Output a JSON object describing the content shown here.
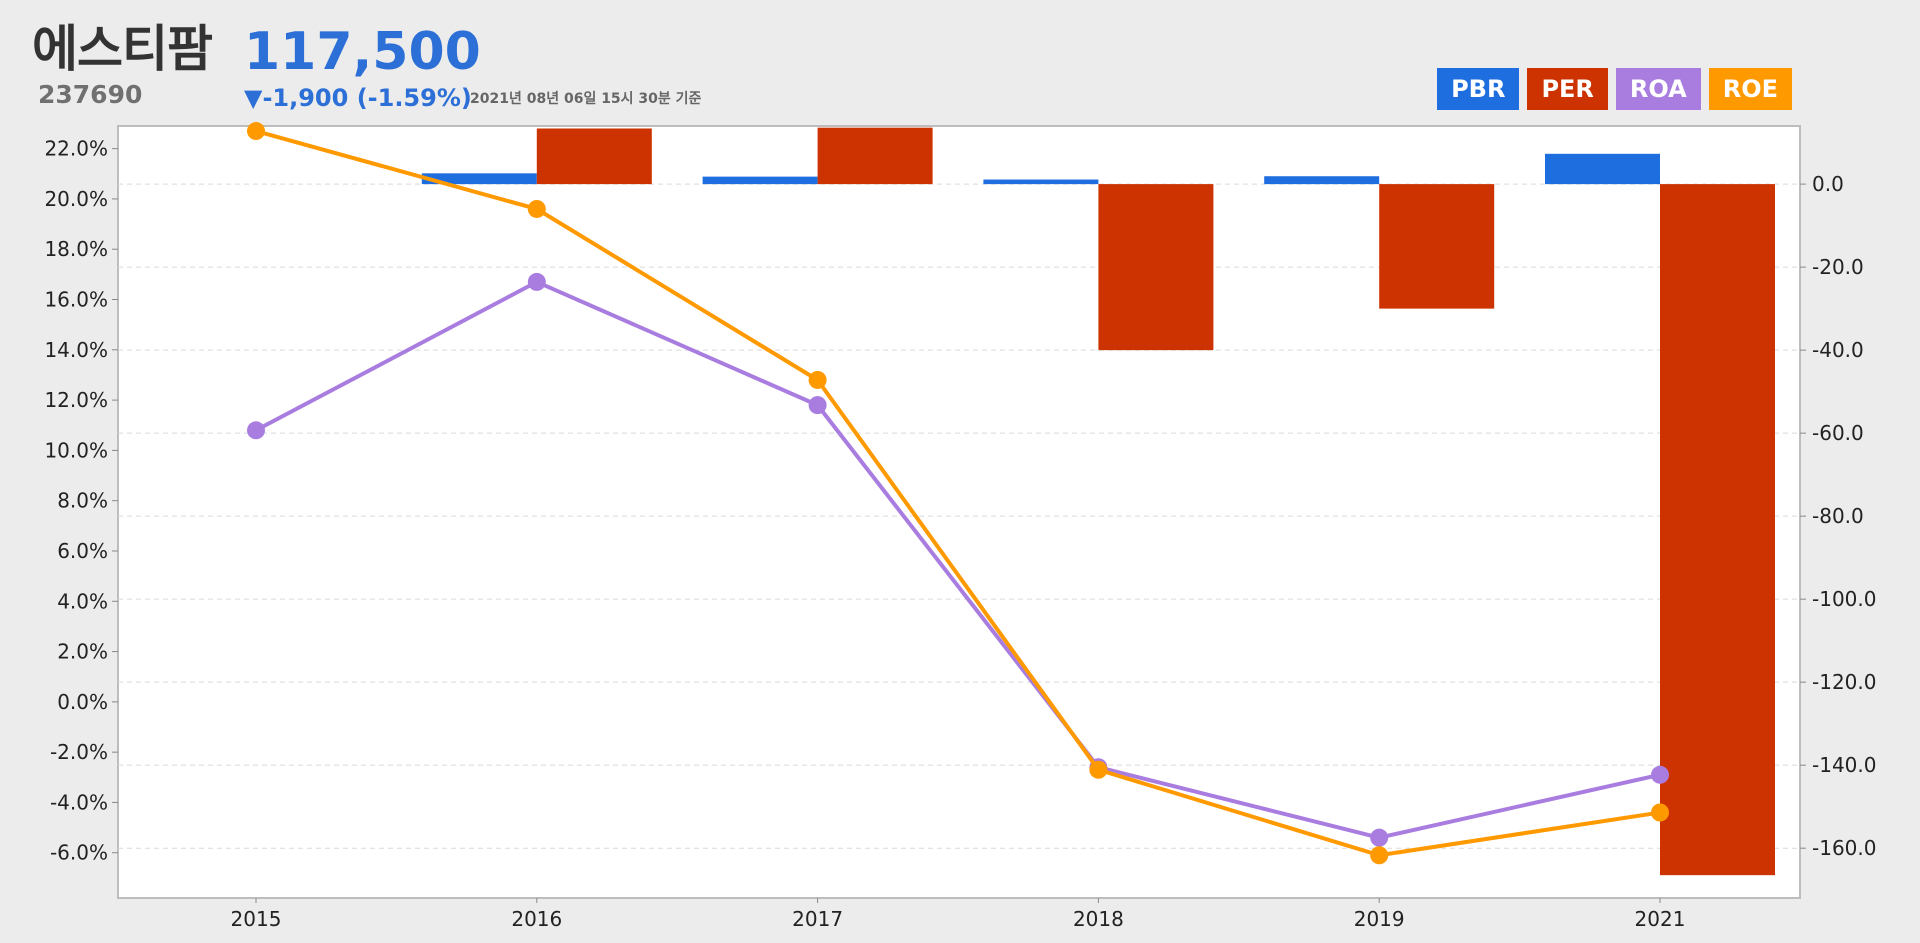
{
  "header": {
    "company_name": "에스티팜",
    "stock_code": "237690",
    "price": "117,500",
    "change": "▼-1,900 (-1.59%)",
    "timestamp": "2021년 08년 06일 15시 30분 기준"
  },
  "legend": [
    {
      "label": "PBR",
      "color": "#1f6ee0"
    },
    {
      "label": "PER",
      "color": "#cc3300"
    },
    {
      "label": "ROA",
      "color": "#a97de0"
    },
    {
      "label": "ROE",
      "color": "#ff9900"
    }
  ],
  "chart_data": {
    "type": "bar",
    "categories": [
      "2015",
      "2016",
      "2017",
      "2018",
      "2019",
      "2021"
    ],
    "left_axis": {
      "ylim": [
        -7.8,
        22.9
      ],
      "ticks": [
        22,
        20,
        18,
        16,
        14,
        12,
        10,
        8,
        6,
        4,
        2,
        0,
        -2,
        -4,
        -6
      ],
      "tick_labels": [
        "22.0%",
        "20.0%",
        "18.0%",
        "16.0%",
        "14.0%",
        "12.0%",
        "10.0%",
        "8.0%",
        "6.0%",
        "4.0%",
        "2.0%",
        "0.0%",
        "-2.0%",
        "-4.0%",
        "-6.0%"
      ]
    },
    "right_axis": {
      "ylim": [
        -172,
        14
      ],
      "ticks": [
        0,
        -20,
        -40,
        -60,
        -80,
        -100,
        -120,
        -140,
        -160
      ],
      "tick_labels": [
        "0.0",
        "-20.0",
        "-40.0",
        "-60.0",
        "-80.0",
        "-100.0",
        "-120.0",
        "-140.0",
        "-160.0"
      ]
    },
    "grid": true,
    "series": [
      {
        "name": "PBR",
        "kind": "bar",
        "axis": "right",
        "color": "#1f6ee0",
        "values": [
          null,
          2.6,
          1.8,
          1.1,
          1.9,
          7.3
        ]
      },
      {
        "name": "PER",
        "kind": "bar",
        "axis": "right",
        "color": "#cc3300",
        "values": [
          null,
          13.4,
          13.6,
          -40.0,
          -30.0,
          -166.5
        ]
      },
      {
        "name": "ROA",
        "kind": "line",
        "axis": "left",
        "color": "#a97de0",
        "values": [
          10.8,
          16.7,
          11.8,
          -2.6,
          -5.4,
          -2.9
        ]
      },
      {
        "name": "ROE",
        "kind": "line",
        "axis": "left",
        "color": "#ff9900",
        "values": [
          22.7,
          19.6,
          12.8,
          -2.7,
          -6.1,
          -4.4
        ]
      }
    ]
  }
}
